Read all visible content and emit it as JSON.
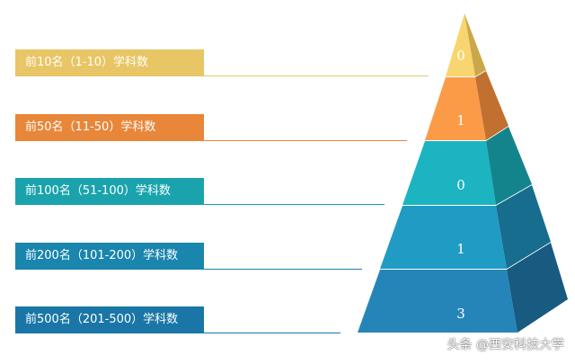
{
  "tiers": [
    {
      "label": "前10名（1-10）学科数",
      "value": "0",
      "color": "#e8c565",
      "front": "#f8d56e",
      "side": "#cca748"
    },
    {
      "label": "前50名（11-50）学科数",
      "value": "1",
      "color": "#e8863a",
      "front": "#fb9b48",
      "side": "#c2702f"
    },
    {
      "label": "前100名（51-100）学科数",
      "value": "0",
      "color": "#1aa3ad",
      "front": "#1cb4c0",
      "side": "#14848c"
    },
    {
      "label": "前200名（101-200）学科数",
      "value": "1",
      "color": "#1a85ad",
      "front": "#1f9bc4",
      "side": "#176d8e"
    },
    {
      "label": "前500名（201-500）学科数",
      "value": "3",
      "color": "#1a76a6",
      "front": "#2585b8",
      "side": "#185a80"
    }
  ],
  "watermark": "头条 @西安科技大学"
}
